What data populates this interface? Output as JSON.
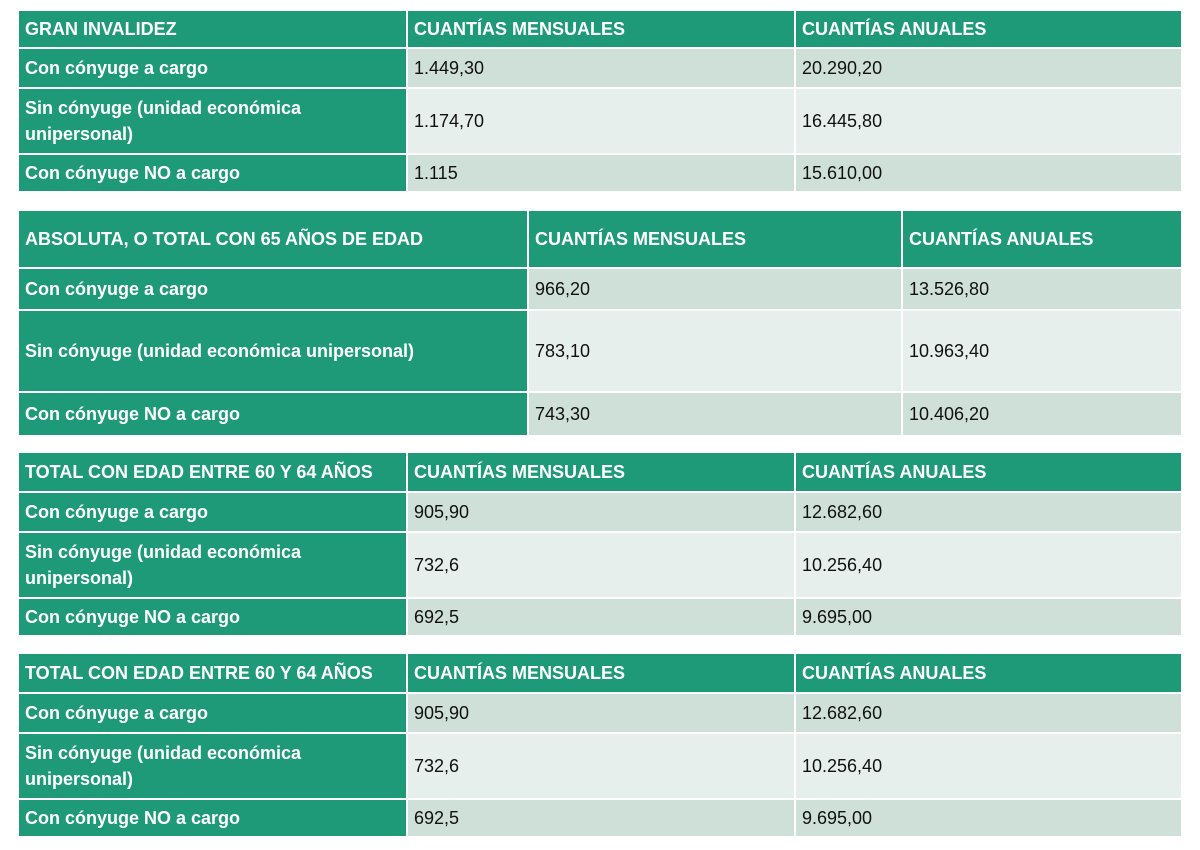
{
  "tables": [
    {
      "title": "GRAN INVALIDEZ",
      "col_monthly": "CUANTÍAS MENSUALES",
      "col_annual": "CUANTÍAS ANUALES",
      "rows": [
        {
          "label": "Con cónyuge a cargo",
          "monthly": "1.449,30",
          "annual": "20.290,20"
        },
        {
          "label": "Sin cónyuge (unidad económica unipersonal)",
          "monthly": "1.174,70",
          "annual": "16.445,80"
        },
        {
          "label": "Con cónyuge NO a cargo",
          "monthly": "1.115",
          "annual": "15.610,00"
        }
      ]
    },
    {
      "title": "ABSOLUTA, O TOTAL CON 65 AÑOS DE EDAD",
      "col_monthly": "CUANTÍAS MENSUALES",
      "col_annual": "CUANTÍAS ANUALES",
      "rows": [
        {
          "label": "Con cónyuge a cargo",
          "monthly": "966,20",
          "annual": "13.526,80"
        },
        {
          "label": "Sin cónyuge (unidad económica unipersonal)",
          "monthly": "783,10",
          "annual": "10.963,40"
        },
        {
          "label": "Con cónyuge NO a cargo",
          "monthly": "743,30",
          "annual": "10.406,20"
        }
      ]
    },
    {
      "title": "TOTAL CON EDAD ENTRE 60 Y 64 AÑOS",
      "col_monthly": "CUANTÍAS MENSUALES",
      "col_annual": "CUANTÍAS ANUALES",
      "rows": [
        {
          "label": "Con cónyuge a cargo",
          "monthly": "905,90",
          "annual": "12.682,60"
        },
        {
          "label": "Sin cónyuge (unidad económica unipersonal)",
          "monthly": "732,6",
          "annual": "10.256,40"
        },
        {
          "label": "Con cónyuge NO a cargo",
          "monthly": "692,5",
          "annual": "9.695,00"
        }
      ]
    },
    {
      "title": "TOTAL CON EDAD ENTRE 60 Y 64 AÑOS",
      "col_monthly": "CUANTÍAS MENSUALES",
      "col_annual": "CUANTÍAS ANUALES",
      "rows": [
        {
          "label": "Con cónyuge a cargo",
          "monthly": "905,90",
          "annual": "12.682,60"
        },
        {
          "label": "Sin cónyuge (unidad económica unipersonal)",
          "monthly": "732,6",
          "annual": "10.256,40"
        },
        {
          "label": "Con cónyuge NO a cargo",
          "monthly": "692,5",
          "annual": "9.695,00"
        }
      ]
    }
  ],
  "colors": {
    "header_bg": "#1e9a78",
    "header_text": "#ffffff",
    "row_odd_bg": "#cfe0d8",
    "row_even_bg": "#e6efeb"
  }
}
